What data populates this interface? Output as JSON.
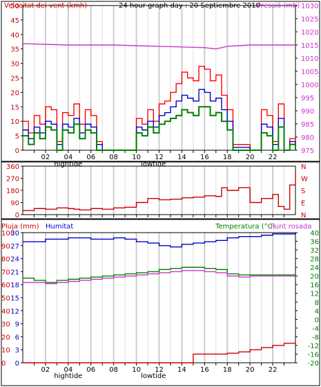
{
  "chart_data": [
    {
      "type": "line",
      "title": "24 hour graph day : 20 Septiembre 2010",
      "ylabel": "Velocitat del vent (kmh)",
      "y2label": "Pressió (mb)",
      "ylim": [
        0,
        50
      ],
      "y2lim": [
        975,
        1030
      ],
      "yticks": [
        "0",
        "5",
        "10",
        "15",
        "20",
        "25",
        "30",
        "35",
        "40",
        "45",
        "50"
      ],
      "y2ticks": [
        "975",
        "980",
        "985",
        "990",
        "995",
        "1000",
        "1005",
        "1010",
        "1015",
        "1020",
        "1025",
        "1030"
      ],
      "xlim": [
        0,
        24
      ],
      "xticks": [
        "02",
        "04",
        "06",
        "08",
        "10",
        "12",
        "14",
        "16",
        "18",
        "20",
        "22"
      ],
      "markers": [
        "hightide",
        "lowtide"
      ],
      "colors": {
        "gust": "#ff0000",
        "avg": "#0000cc",
        "wind": "#008000",
        "pressure": "#cc33cc"
      },
      "series": [
        {
          "key": "gust",
          "x": [
            0,
            0.5,
            1,
            1.5,
            2,
            2.5,
            3,
            3.5,
            4,
            4.5,
            5,
            5.5,
            6,
            6.5,
            7,
            9.5,
            10,
            10.5,
            11,
            11.5,
            12,
            12.5,
            13,
            13.5,
            14,
            14.5,
            15,
            15.5,
            16,
            16.5,
            17,
            17.5,
            18,
            18.5,
            20,
            20.5,
            21,
            21.5,
            22,
            22.5,
            23,
            23.5,
            24
          ],
          "y": [
            10,
            6,
            12,
            9,
            15,
            14,
            3,
            13,
            12,
            16,
            9,
            14,
            12,
            3,
            0,
            0,
            11,
            9,
            14,
            10,
            16,
            17,
            20,
            23,
            27,
            25,
            24,
            29,
            28,
            24,
            26,
            19,
            14,
            2,
            0,
            0,
            14,
            12,
            3,
            16,
            0,
            4,
            0
          ]
        },
        {
          "key": "avg",
          "x": [
            0,
            0.5,
            1,
            1.5,
            2,
            2.5,
            3,
            3.5,
            4,
            4.5,
            5,
            5.5,
            6,
            6.5,
            7,
            9.5,
            10,
            10.5,
            11,
            11.5,
            12,
            12.5,
            13,
            13.5,
            14,
            14.5,
            15,
            15.5,
            16,
            16.5,
            17,
            17.5,
            18,
            18.5,
            20,
            20.5,
            21,
            21.5,
            22,
            22.5,
            23,
            23.5,
            24
          ],
          "y": [
            7,
            4,
            8,
            6,
            10,
            9,
            2,
            9,
            8,
            11,
            6,
            9,
            8,
            2,
            0,
            0,
            8,
            7,
            10,
            8,
            12,
            13,
            15,
            17,
            19,
            18,
            17,
            21,
            20,
            17,
            18,
            14,
            10,
            1,
            0,
            0,
            9,
            8,
            2,
            11,
            0,
            3,
            0
          ]
        },
        {
          "key": "wind",
          "x": [
            0,
            0.5,
            1,
            1.5,
            2,
            2.5,
            3,
            3.5,
            4,
            4.5,
            5,
            5.5,
            6,
            6.5,
            7,
            9.5,
            10,
            10.5,
            11,
            11.5,
            12,
            12.5,
            13,
            13.5,
            14,
            14.5,
            15,
            15.5,
            16,
            16.5,
            17,
            17.5,
            18,
            18.5,
            20,
            20.5,
            21,
            21.5,
            22,
            22.5,
            23,
            23.5,
            24
          ],
          "y": [
            5,
            2,
            6,
            4,
            8,
            7,
            0,
            7,
            6,
            9,
            4,
            7,
            6,
            0,
            0,
            0,
            6,
            5,
            8,
            6,
            9,
            10,
            11,
            12,
            14,
            13,
            12,
            15,
            15,
            12,
            13,
            10,
            7,
            0,
            0,
            0,
            6,
            5,
            0,
            8,
            0,
            2,
            0
          ]
        },
        {
          "key": "pressure",
          "axis": "y2",
          "x": [
            0,
            4,
            8,
            12,
            16,
            17,
            18,
            20,
            22,
            24
          ],
          "y": [
            1015.5,
            1015,
            1015,
            1014.5,
            1014,
            1013.5,
            1014.5,
            1015,
            1015,
            1015
          ]
        }
      ]
    },
    {
      "type": "line",
      "ylim": [
        0,
        360
      ],
      "yticks": [
        "0",
        "90",
        "180",
        "270",
        "360"
      ],
      "y2labels": [
        "N",
        "W",
        "S",
        "E",
        "N"
      ],
      "xlim": [
        0,
        24
      ],
      "colors": {
        "direction": "#cc0000"
      },
      "series": [
        {
          "key": "direction",
          "x": [
            0,
            1,
            2,
            3,
            4,
            4.5,
            5,
            6,
            7,
            8,
            9,
            10,
            11,
            12,
            13,
            14,
            15,
            16,
            17,
            17.5,
            18,
            19,
            20,
            21,
            22,
            22.5,
            23,
            23.5,
            24
          ],
          "y": [
            30,
            45,
            40,
            50,
            45,
            40,
            35,
            45,
            40,
            50,
            55,
            90,
            120,
            110,
            115,
            125,
            130,
            140,
            135,
            200,
            180,
            200,
            90,
            120,
            150,
            60,
            40,
            220,
            310
          ]
        }
      ]
    },
    {
      "type": "line",
      "labels": [
        "Pluja (mm)",
        "Humitat",
        "Temperatura (°C)",
        "Punt rosada"
      ],
      "ylim": [
        0,
        100
      ],
      "yticks": [
        "0",
        "10",
        "20",
        "30",
        "40",
        "50",
        "60",
        "70",
        "80",
        "90",
        "100"
      ],
      "yticks_inner": [
        "0",
        "3",
        "6",
        "9",
        "12",
        "15",
        "18",
        "21",
        "24",
        "27",
        "30"
      ],
      "y2ticks": [
        "-20",
        "-16",
        "-12",
        "-8",
        "-4",
        "0",
        "4",
        "8",
        "12",
        "16",
        "20",
        "24",
        "28",
        "32",
        "36",
        "40"
      ],
      "xlim": [
        0,
        24
      ],
      "xticks": [
        "02",
        "04",
        "06",
        "08",
        "10",
        "12",
        "14",
        "16",
        "18",
        "20",
        "22"
      ],
      "markers": [
        "hightide",
        "lowtide"
      ],
      "colors": {
        "humidity": "#0000cc",
        "temp": "#008000",
        "dew": "#cc33cc",
        "rain": "#cc0000"
      },
      "series": [
        {
          "key": "humidity",
          "x": [
            0,
            2,
            4,
            6,
            8,
            9,
            10,
            11,
            12,
            13,
            14,
            15,
            16,
            17,
            18,
            19,
            20,
            21,
            22,
            23,
            24
          ],
          "y": [
            93,
            95,
            96,
            95,
            96,
            95,
            93,
            92,
            90,
            89,
            91,
            92,
            93,
            94,
            96,
            97,
            97,
            98,
            99,
            99,
            100
          ]
        },
        {
          "key": "temp",
          "x": [
            0,
            1,
            2,
            3,
            4,
            5,
            6,
            7,
            8,
            9,
            10,
            11,
            12,
            13,
            14,
            15,
            16,
            17,
            18,
            19,
            20,
            21,
            22,
            23,
            24
          ],
          "y": [
            19,
            18,
            17,
            18,
            18.5,
            19,
            19.5,
            20,
            20.5,
            21,
            21.5,
            22,
            23,
            23.5,
            24,
            24,
            23.5,
            23,
            21,
            20.5,
            20.5,
            20.5,
            20.5,
            20.5,
            20.5
          ]
        },
        {
          "key": "dew",
          "x": [
            0,
            1,
            2,
            3,
            4,
            5,
            6,
            7,
            8,
            9,
            10,
            11,
            12,
            13,
            14,
            15,
            16,
            17,
            18,
            19,
            20,
            21,
            22,
            23,
            24
          ],
          "y": [
            17,
            17,
            16.5,
            17,
            17.5,
            18,
            18.5,
            19,
            19.5,
            20,
            20.5,
            21,
            21.5,
            22,
            22.5,
            22.5,
            22,
            21.5,
            20,
            19.5,
            20,
            20,
            20,
            20,
            20
          ]
        },
        {
          "key": "rain",
          "x": [
            0,
            6,
            12,
            14.8,
            15,
            16,
            17,
            18,
            19,
            20,
            21,
            22,
            23,
            24
          ],
          "y": [
            0,
            0,
            0,
            0,
            2,
            2,
            2,
            2.2,
            2.5,
            3,
            3.5,
            4,
            4.5,
            5
          ]
        }
      ]
    }
  ]
}
